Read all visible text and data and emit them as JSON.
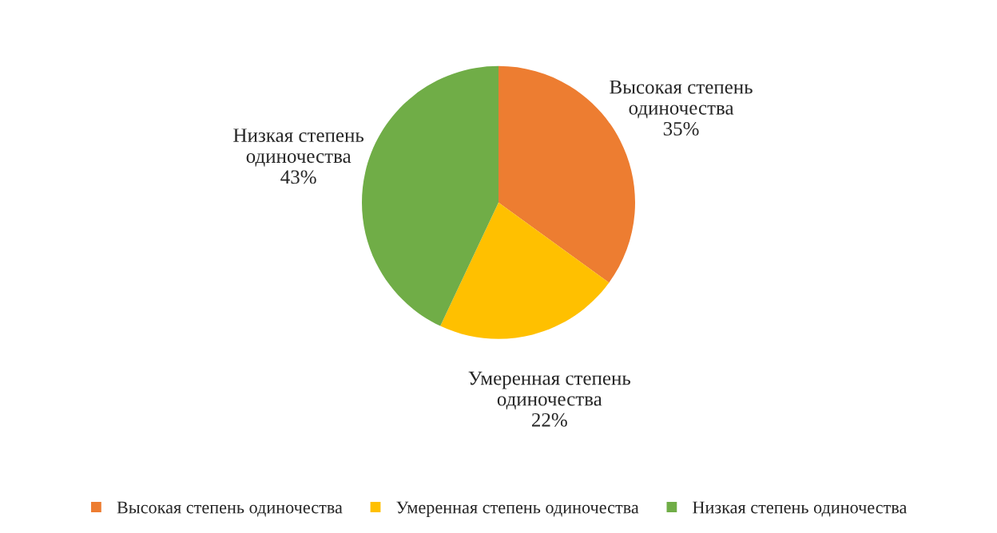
{
  "chart_data": {
    "type": "pie",
    "categories": [
      "Высокая степень одиночества",
      "Умеренная степень одиночества",
      "Низкая степень одиночества"
    ],
    "values": [
      35,
      22,
      43
    ],
    "colors": [
      "#ed7d31",
      "#ffc000",
      "#70ad47"
    ],
    "value_labels": [
      "35%",
      "22%",
      "43%"
    ],
    "legend": "bottom"
  }
}
